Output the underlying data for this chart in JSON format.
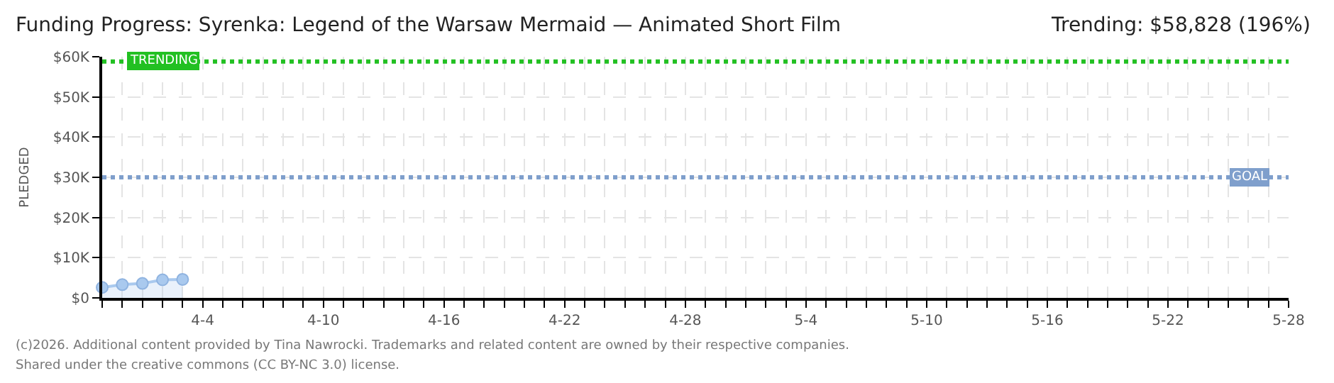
{
  "chart_data": {
    "type": "area",
    "title": "Funding Progress: Syrenka: Legend of the Warsaw Mermaid — Animated Short Film",
    "subtitle": "Trending: $58,828 (196%)",
    "ylabel": "PLEDGED",
    "x": [
      "2026-03-30",
      "2026-03-31",
      "2026-04-01",
      "2026-04-02",
      "2026-04-03"
    ],
    "series": [
      {
        "color": "#a9c9ee",
        "values": [
          2600,
          3300,
          3600,
          4500,
          4600
        ]
      }
    ],
    "marker": "circle",
    "xlim": [
      "2026-03-30",
      "2026-05-28"
    ],
    "xticks": [
      {
        "value": "2026-03-30",
        "label": null
      },
      {
        "value": "2026-03-31",
        "label": null
      },
      {
        "value": "2026-04-01",
        "label": null
      },
      {
        "value": "2026-04-02",
        "label": null
      },
      {
        "value": "2026-04-03",
        "label": null
      },
      {
        "value": "2026-04-04",
        "label": "4-4"
      },
      {
        "value": "2026-04-05",
        "label": null
      },
      {
        "value": "2026-04-06",
        "label": null
      },
      {
        "value": "2026-04-07",
        "label": null
      },
      {
        "value": "2026-04-08",
        "label": null
      },
      {
        "value": "2026-04-09",
        "label": null
      },
      {
        "value": "2026-04-10",
        "label": "4-10"
      },
      {
        "value": "2026-04-11",
        "label": null
      },
      {
        "value": "2026-04-12",
        "label": null
      },
      {
        "value": "2026-04-13",
        "label": null
      },
      {
        "value": "2026-04-14",
        "label": null
      },
      {
        "value": "2026-04-15",
        "label": null
      },
      {
        "value": "2026-04-16",
        "label": "4-16"
      },
      {
        "value": "2026-04-17",
        "label": null
      },
      {
        "value": "2026-04-18",
        "label": null
      },
      {
        "value": "2026-04-19",
        "label": null
      },
      {
        "value": "2026-04-20",
        "label": null
      },
      {
        "value": "2026-04-21",
        "label": null
      },
      {
        "value": "2026-04-22",
        "label": "4-22"
      },
      {
        "value": "2026-04-23",
        "label": null
      },
      {
        "value": "2026-04-24",
        "label": null
      },
      {
        "value": "2026-04-25",
        "label": null
      },
      {
        "value": "2026-04-26",
        "label": null
      },
      {
        "value": "2026-04-27",
        "label": null
      },
      {
        "value": "2026-04-28",
        "label": "4-28"
      },
      {
        "value": "2026-04-29",
        "label": null
      },
      {
        "value": "2026-04-30",
        "label": null
      },
      {
        "value": "2026-05-01",
        "label": null
      },
      {
        "value": "2026-05-02",
        "label": null
      },
      {
        "value": "2026-05-03",
        "label": null
      },
      {
        "value": "2026-05-04",
        "label": "5-4"
      },
      {
        "value": "2026-05-05",
        "label": null
      },
      {
        "value": "2026-05-06",
        "label": null
      },
      {
        "value": "2026-05-07",
        "label": null
      },
      {
        "value": "2026-05-08",
        "label": null
      },
      {
        "value": "2026-05-09",
        "label": null
      },
      {
        "value": "2026-05-10",
        "label": "5-10"
      },
      {
        "value": "2026-05-11",
        "label": null
      },
      {
        "value": "2026-05-12",
        "label": null
      },
      {
        "value": "2026-05-13",
        "label": null
      },
      {
        "value": "2026-05-14",
        "label": null
      },
      {
        "value": "2026-05-15",
        "label": null
      },
      {
        "value": "2026-05-16",
        "label": "5-16"
      },
      {
        "value": "2026-05-17",
        "label": null
      },
      {
        "value": "2026-05-18",
        "label": null
      },
      {
        "value": "2026-05-19",
        "label": null
      },
      {
        "value": "2026-05-20",
        "label": null
      },
      {
        "value": "2026-05-21",
        "label": null
      },
      {
        "value": "2026-05-22",
        "label": "5-22"
      },
      {
        "value": "2026-05-23",
        "label": null
      },
      {
        "value": "2026-05-24",
        "label": null
      },
      {
        "value": "2026-05-25",
        "label": null
      },
      {
        "value": "2026-05-26",
        "label": null
      },
      {
        "value": "2026-05-27",
        "label": null
      },
      {
        "value": "2026-05-28",
        "label": "5-28"
      }
    ],
    "ylim": [
      0,
      60000
    ],
    "yticks": [
      {
        "value": 0,
        "label": "$0"
      },
      {
        "value": 10000,
        "label": "$10K"
      },
      {
        "value": 20000,
        "label": "$20K"
      },
      {
        "value": 30000,
        "label": "$30K"
      },
      {
        "value": 40000,
        "label": "$40K"
      },
      {
        "value": 50000,
        "label": "$50K"
      },
      {
        "value": 60000,
        "label": "$60K"
      }
    ],
    "grid": true,
    "ref_lines": [
      {
        "axis": "y",
        "value": 58828,
        "label": "TRENDING",
        "color": "#22c022",
        "line_style": "dotted"
      },
      {
        "axis": "y",
        "value": 30000,
        "label": "GOAL",
        "color": "#7f9fcc",
        "line_style": "dotted"
      }
    ],
    "annotations": [
      "(c)2026. Additional content provided by Tina Nawrocki. Trademarks and related content are owned by their respective companies.",
      "Shared under the creative commons (CC BY-NC 3.0) license."
    ]
  }
}
